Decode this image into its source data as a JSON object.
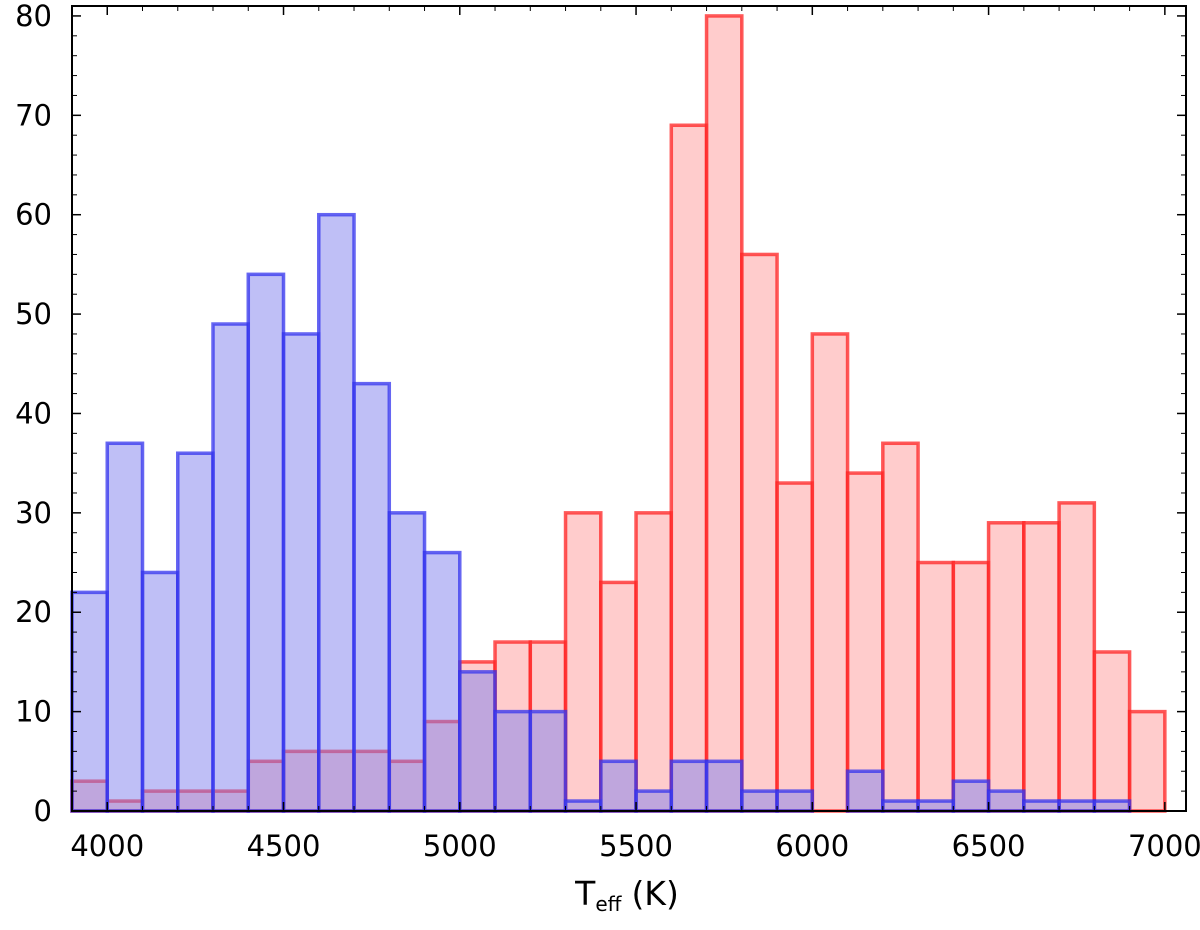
{
  "chart_data": {
    "type": "bar",
    "title": "",
    "xlabel": {
      "main": "T",
      "subscript": "eff",
      "unit": "(K)"
    },
    "ylabel": "",
    "xlim": [
      3900,
      7060
    ],
    "ylim": [
      0,
      81
    ],
    "xticks": [
      4000,
      4500,
      5000,
      5500,
      6000,
      6500,
      7000
    ],
    "yticks": [
      0,
      10,
      20,
      30,
      40,
      50,
      60,
      70,
      80
    ],
    "bin_width": 100,
    "grid": false,
    "legend": "none",
    "series": [
      {
        "color": "#ff2222",
        "fill": "#ff9999",
        "bins": [
          [
            3950,
            3
          ],
          [
            4050,
            1
          ],
          [
            4150,
            2
          ],
          [
            4250,
            2
          ],
          [
            4350,
            2
          ],
          [
            4450,
            5
          ],
          [
            4550,
            6
          ],
          [
            4650,
            6
          ],
          [
            4750,
            6
          ],
          [
            4850,
            5
          ],
          [
            4950,
            9
          ],
          [
            5050,
            15
          ],
          [
            5150,
            17
          ],
          [
            5250,
            17
          ],
          [
            5350,
            30
          ],
          [
            5450,
            23
          ],
          [
            5550,
            30
          ],
          [
            5650,
            69
          ],
          [
            5750,
            80
          ],
          [
            5850,
            56
          ],
          [
            5950,
            33
          ],
          [
            6050,
            48
          ],
          [
            6150,
            34
          ],
          [
            6250,
            37
          ],
          [
            6350,
            25
          ],
          [
            6450,
            25
          ],
          [
            6550,
            29
          ],
          [
            6650,
            29
          ],
          [
            6750,
            31
          ],
          [
            6850,
            16
          ],
          [
            6950,
            10
          ]
        ]
      },
      {
        "color": "#3333ee",
        "fill": "#8080ee",
        "bins": [
          [
            3950,
            22
          ],
          [
            4050,
            37
          ],
          [
            4150,
            24
          ],
          [
            4250,
            36
          ],
          [
            4350,
            49
          ],
          [
            4450,
            54
          ],
          [
            4550,
            48
          ],
          [
            4650,
            60
          ],
          [
            4750,
            43
          ],
          [
            4850,
            30
          ],
          [
            4950,
            26
          ],
          [
            5050,
            14
          ],
          [
            5150,
            10
          ],
          [
            5250,
            10
          ],
          [
            5350,
            1
          ],
          [
            5450,
            5
          ],
          [
            5550,
            2
          ],
          [
            5650,
            5
          ],
          [
            5750,
            5
          ],
          [
            5850,
            2
          ],
          [
            5950,
            2
          ],
          [
            6150,
            4
          ],
          [
            6250,
            1
          ],
          [
            6350,
            1
          ],
          [
            6450,
            3
          ],
          [
            6550,
            2
          ],
          [
            6650,
            1
          ],
          [
            6750,
            1
          ],
          [
            6850,
            1
          ]
        ]
      }
    ]
  }
}
